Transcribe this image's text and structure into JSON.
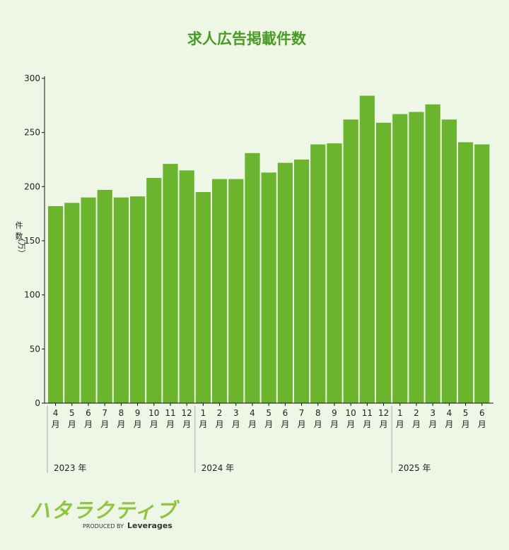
{
  "chart_data": {
    "type": "bar",
    "title": "求人広告掲載件数",
    "ylabel": [
      "件",
      "数",
      "（万）"
    ],
    "ylim": [
      0,
      300
    ],
    "yticks": [
      0,
      50,
      100,
      150,
      200,
      250,
      300
    ],
    "categories": [
      [
        "4",
        "月"
      ],
      [
        "5",
        "月"
      ],
      [
        "6",
        "月"
      ],
      [
        "7",
        "月"
      ],
      [
        "8",
        "月"
      ],
      [
        "9",
        "月"
      ],
      [
        "10",
        "月"
      ],
      [
        "11",
        "月"
      ],
      [
        "12",
        "月"
      ],
      [
        "1",
        "月"
      ],
      [
        "2",
        "月"
      ],
      [
        "3",
        "月"
      ],
      [
        "4",
        "月"
      ],
      [
        "5",
        "月"
      ],
      [
        "6",
        "月"
      ],
      [
        "7",
        "月"
      ],
      [
        "8",
        "月"
      ],
      [
        "9",
        "月"
      ],
      [
        "10",
        "月"
      ],
      [
        "11",
        "月"
      ],
      [
        "12",
        "月"
      ],
      [
        "1",
        "月"
      ],
      [
        "2",
        "月"
      ],
      [
        "3",
        "月"
      ],
      [
        "4",
        "月"
      ],
      [
        "5",
        "月"
      ],
      [
        "6",
        "月"
      ]
    ],
    "values": [
      182,
      185,
      190,
      197,
      190,
      191,
      208,
      221,
      215,
      195,
      207,
      207,
      231,
      213,
      222,
      225,
      239,
      240,
      262,
      284,
      259,
      267,
      269,
      276,
      262,
      241,
      239
    ],
    "year_groups": [
      {
        "label": "2023 年",
        "start": 0
      },
      {
        "label": "2024 年",
        "start": 9
      },
      {
        "label": "2025 年",
        "start": 21
      }
    ],
    "bar_color": "#6bb42d",
    "grid": false
  },
  "logo": {
    "name": "ハタラクティブ",
    "produced_by": "PRODUCED BY",
    "brand": "Leverages",
    "color": "#8ec63f"
  }
}
